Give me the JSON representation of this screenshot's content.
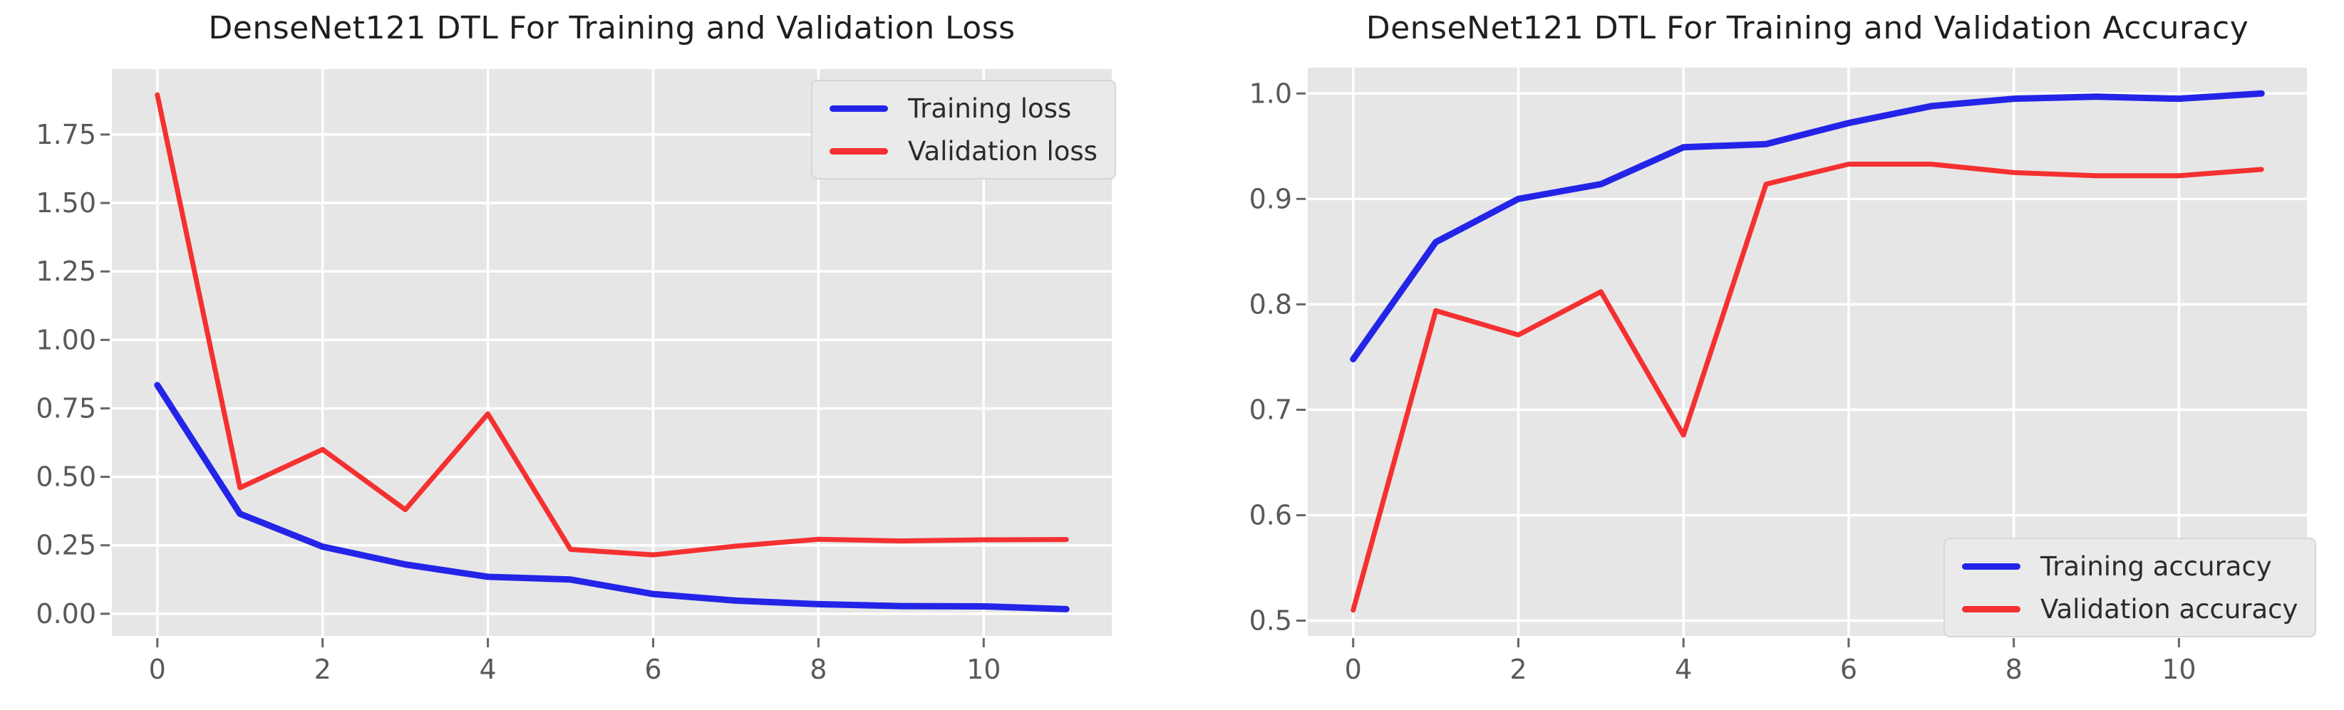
{
  "style": {
    "figure_bg": "#ffffff",
    "plot_bg": "#e6e6e6",
    "grid_color": "#ffffff",
    "tick_mark_color": "#666666",
    "tick_label_color": "#595959",
    "title_color": "#1f1f1f",
    "legend_bg": "#eaeaea",
    "legend_border": "#d6d6d6"
  },
  "chart_data": [
    {
      "type": "line",
      "title": "DenseNet121 DTL For Training and Validation Loss",
      "x": [
        0,
        1,
        2,
        3,
        4,
        5,
        6,
        7,
        8,
        9,
        10,
        11
      ],
      "series": [
        {
          "name": "Training loss",
          "color": "#2424e8",
          "values": [
            0.835,
            0.365,
            0.245,
            0.18,
            0.135,
            0.125,
            0.072,
            0.048,
            0.035,
            0.028,
            0.027,
            0.017
          ]
        },
        {
          "name": "Validation loss",
          "color": "#f53030",
          "values": [
            1.895,
            0.46,
            0.6,
            0.38,
            0.73,
            0.235,
            0.215,
            0.247,
            0.272,
            0.266,
            0.27,
            0.271
          ]
        }
      ],
      "xlabel": "",
      "ylabel": "",
      "xticks": [
        0,
        2,
        4,
        6,
        8,
        10
      ],
      "yticks": [
        {
          "v": 0.0,
          "label": "0.00"
        },
        {
          "v": 0.25,
          "label": "0.25"
        },
        {
          "v": 0.5,
          "label": "0.50"
        },
        {
          "v": 0.75,
          "label": "0.75"
        },
        {
          "v": 1.0,
          "label": "1.00"
        },
        {
          "v": 1.25,
          "label": "1.25"
        },
        {
          "v": 1.5,
          "label": "1.50"
        },
        {
          "v": 1.75,
          "label": "1.75"
        }
      ],
      "xlim": [
        -0.55,
        11.55
      ],
      "ylim": [
        -0.081,
        1.989
      ],
      "grid": true,
      "legend_position": "upper-right"
    },
    {
      "type": "line",
      "title": "DenseNet121 DTL For Training and Validation Accuracy",
      "x": [
        0,
        1,
        2,
        3,
        4,
        5,
        6,
        7,
        8,
        9,
        10,
        11
      ],
      "series": [
        {
          "name": "Training accuracy",
          "color": "#2424e8",
          "values": [
            0.748,
            0.859,
            0.9,
            0.914,
            0.949,
            0.952,
            0.972,
            0.988,
            0.995,
            0.997,
            0.995,
            1.0
          ]
        },
        {
          "name": "Validation accuracy",
          "color": "#f53030",
          "values": [
            0.51,
            0.794,
            0.771,
            0.812,
            0.676,
            0.914,
            0.933,
            0.933,
            0.925,
            0.922,
            0.922,
            0.928
          ]
        }
      ],
      "xlabel": "",
      "ylabel": "",
      "xticks": [
        0,
        2,
        4,
        6,
        8,
        10
      ],
      "yticks": [
        {
          "v": 0.5,
          "label": "0.5"
        },
        {
          "v": 0.6,
          "label": "0.6"
        },
        {
          "v": 0.7,
          "label": "0.7"
        },
        {
          "v": 0.8,
          "label": "0.8"
        },
        {
          "v": 0.9,
          "label": "0.9"
        },
        {
          "v": 1.0,
          "label": "1.0"
        }
      ],
      "xlim": [
        -0.55,
        11.55
      ],
      "ylim": [
        0.4855,
        1.0245
      ],
      "grid": true,
      "legend_position": "lower-right"
    }
  ]
}
